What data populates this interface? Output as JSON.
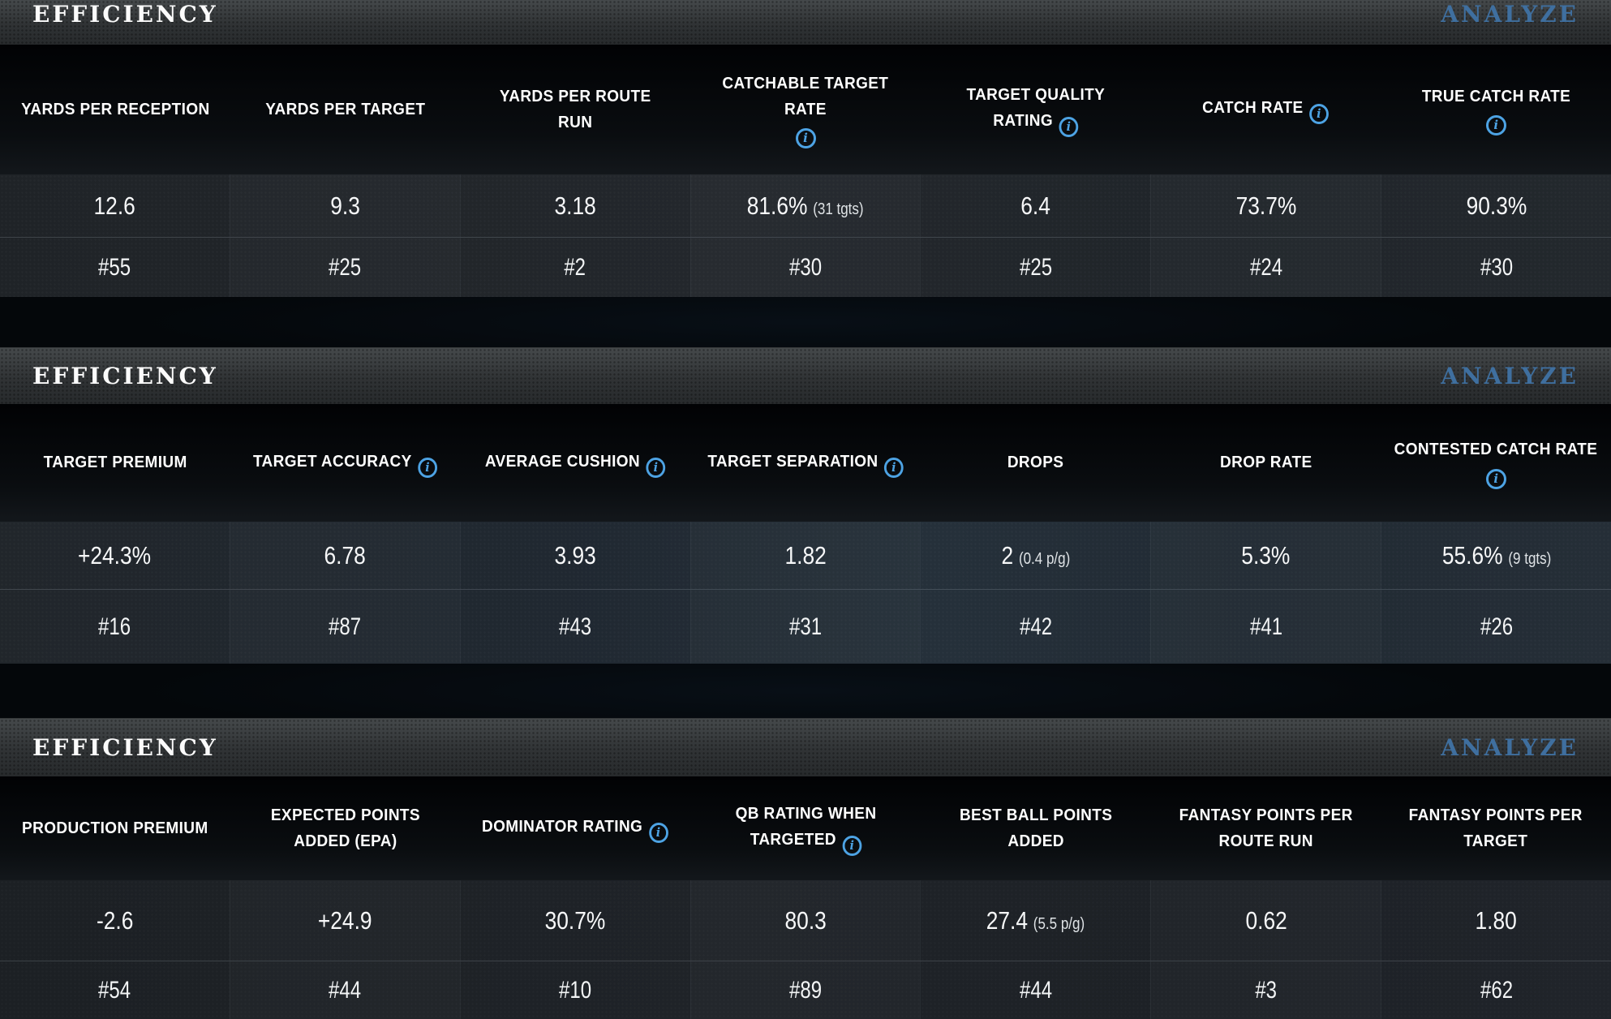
{
  "colors": {
    "analyze_blue": "#3f6f9f",
    "info_icon_blue": "#4da3e4",
    "header_text": "#ffffff",
    "bar_background": "#303335",
    "row_background": "#21262b"
  },
  "sections": [
    {
      "title": "EFFICIENCY",
      "action_label": "ANALYZE",
      "columns": [
        {
          "label": "YARDS PER RECEPTION",
          "info": "none",
          "value": "12.6",
          "note": "",
          "rank": "#55"
        },
        {
          "label": "YARDS PER TARGET",
          "info": "none",
          "value": "9.3",
          "note": "",
          "rank": "#25"
        },
        {
          "label": "YARDS PER ROUTE\nRUN",
          "info": "none",
          "value": "3.18",
          "note": "",
          "rank": "#2"
        },
        {
          "label": "CATCHABLE TARGET RATE",
          "info": "below",
          "value": "81.6%",
          "note": "(31 tgts)",
          "rank": "#30"
        },
        {
          "label": "TARGET QUALITY\nRATING",
          "info": "inline",
          "value": "6.4",
          "note": "",
          "rank": "#25"
        },
        {
          "label": "CATCH RATE",
          "info": "inline",
          "value": "73.7%",
          "note": "",
          "rank": "#24"
        },
        {
          "label": "TRUE CATCH RATE",
          "info": "below",
          "value": "90.3%",
          "note": "",
          "rank": "#30"
        }
      ]
    },
    {
      "title": "EFFICIENCY",
      "action_label": "ANALYZE",
      "columns": [
        {
          "label": "TARGET PREMIUM",
          "info": "none",
          "value": "+24.3%",
          "note": "",
          "rank": "#16"
        },
        {
          "label": "TARGET ACCURACY",
          "info": "inline",
          "value": "6.78",
          "note": "",
          "rank": "#87"
        },
        {
          "label": "AVERAGE CUSHION",
          "info": "inline",
          "value": "3.93",
          "note": "",
          "rank": "#43"
        },
        {
          "label": "TARGET SEPARATION",
          "info": "inline",
          "value": "1.82",
          "note": "",
          "rank": "#31"
        },
        {
          "label": "DROPS",
          "info": "none",
          "value": "2",
          "note": "(0.4 p/g)",
          "rank": "#42"
        },
        {
          "label": "DROP RATE",
          "info": "none",
          "value": "5.3%",
          "note": "",
          "rank": "#41"
        },
        {
          "label": "CONTESTED CATCH RATE",
          "info": "below",
          "value": "55.6%",
          "note": "(9 tgts)",
          "rank": "#26"
        }
      ]
    },
    {
      "title": "EFFICIENCY",
      "action_label": "ANALYZE",
      "columns": [
        {
          "label": "PRODUCTION PREMIUM",
          "info": "none",
          "value": "-2.6",
          "note": "",
          "rank": "#54"
        },
        {
          "label": "EXPECTED POINTS\nADDED (EPA)",
          "info": "none",
          "value": "+24.9",
          "note": "",
          "rank": "#44"
        },
        {
          "label": "DOMINATOR RATING",
          "info": "inline",
          "value": "30.7%",
          "note": "",
          "rank": "#10"
        },
        {
          "label": "QB RATING WHEN\nTARGETED",
          "info": "inline",
          "value": "80.3",
          "note": "",
          "rank": "#89"
        },
        {
          "label": "BEST BALL POINTS\nADDED",
          "info": "none",
          "value": "27.4",
          "note": "(5.5 p/g)",
          "rank": "#44"
        },
        {
          "label": "FANTASY POINTS PER\nROUTE RUN",
          "info": "none",
          "value": "0.62",
          "note": "",
          "rank": "#3"
        },
        {
          "label": "FANTASY POINTS PER\nTARGET",
          "info": "none",
          "value": "1.80",
          "note": "",
          "rank": "#62"
        }
      ]
    }
  ]
}
